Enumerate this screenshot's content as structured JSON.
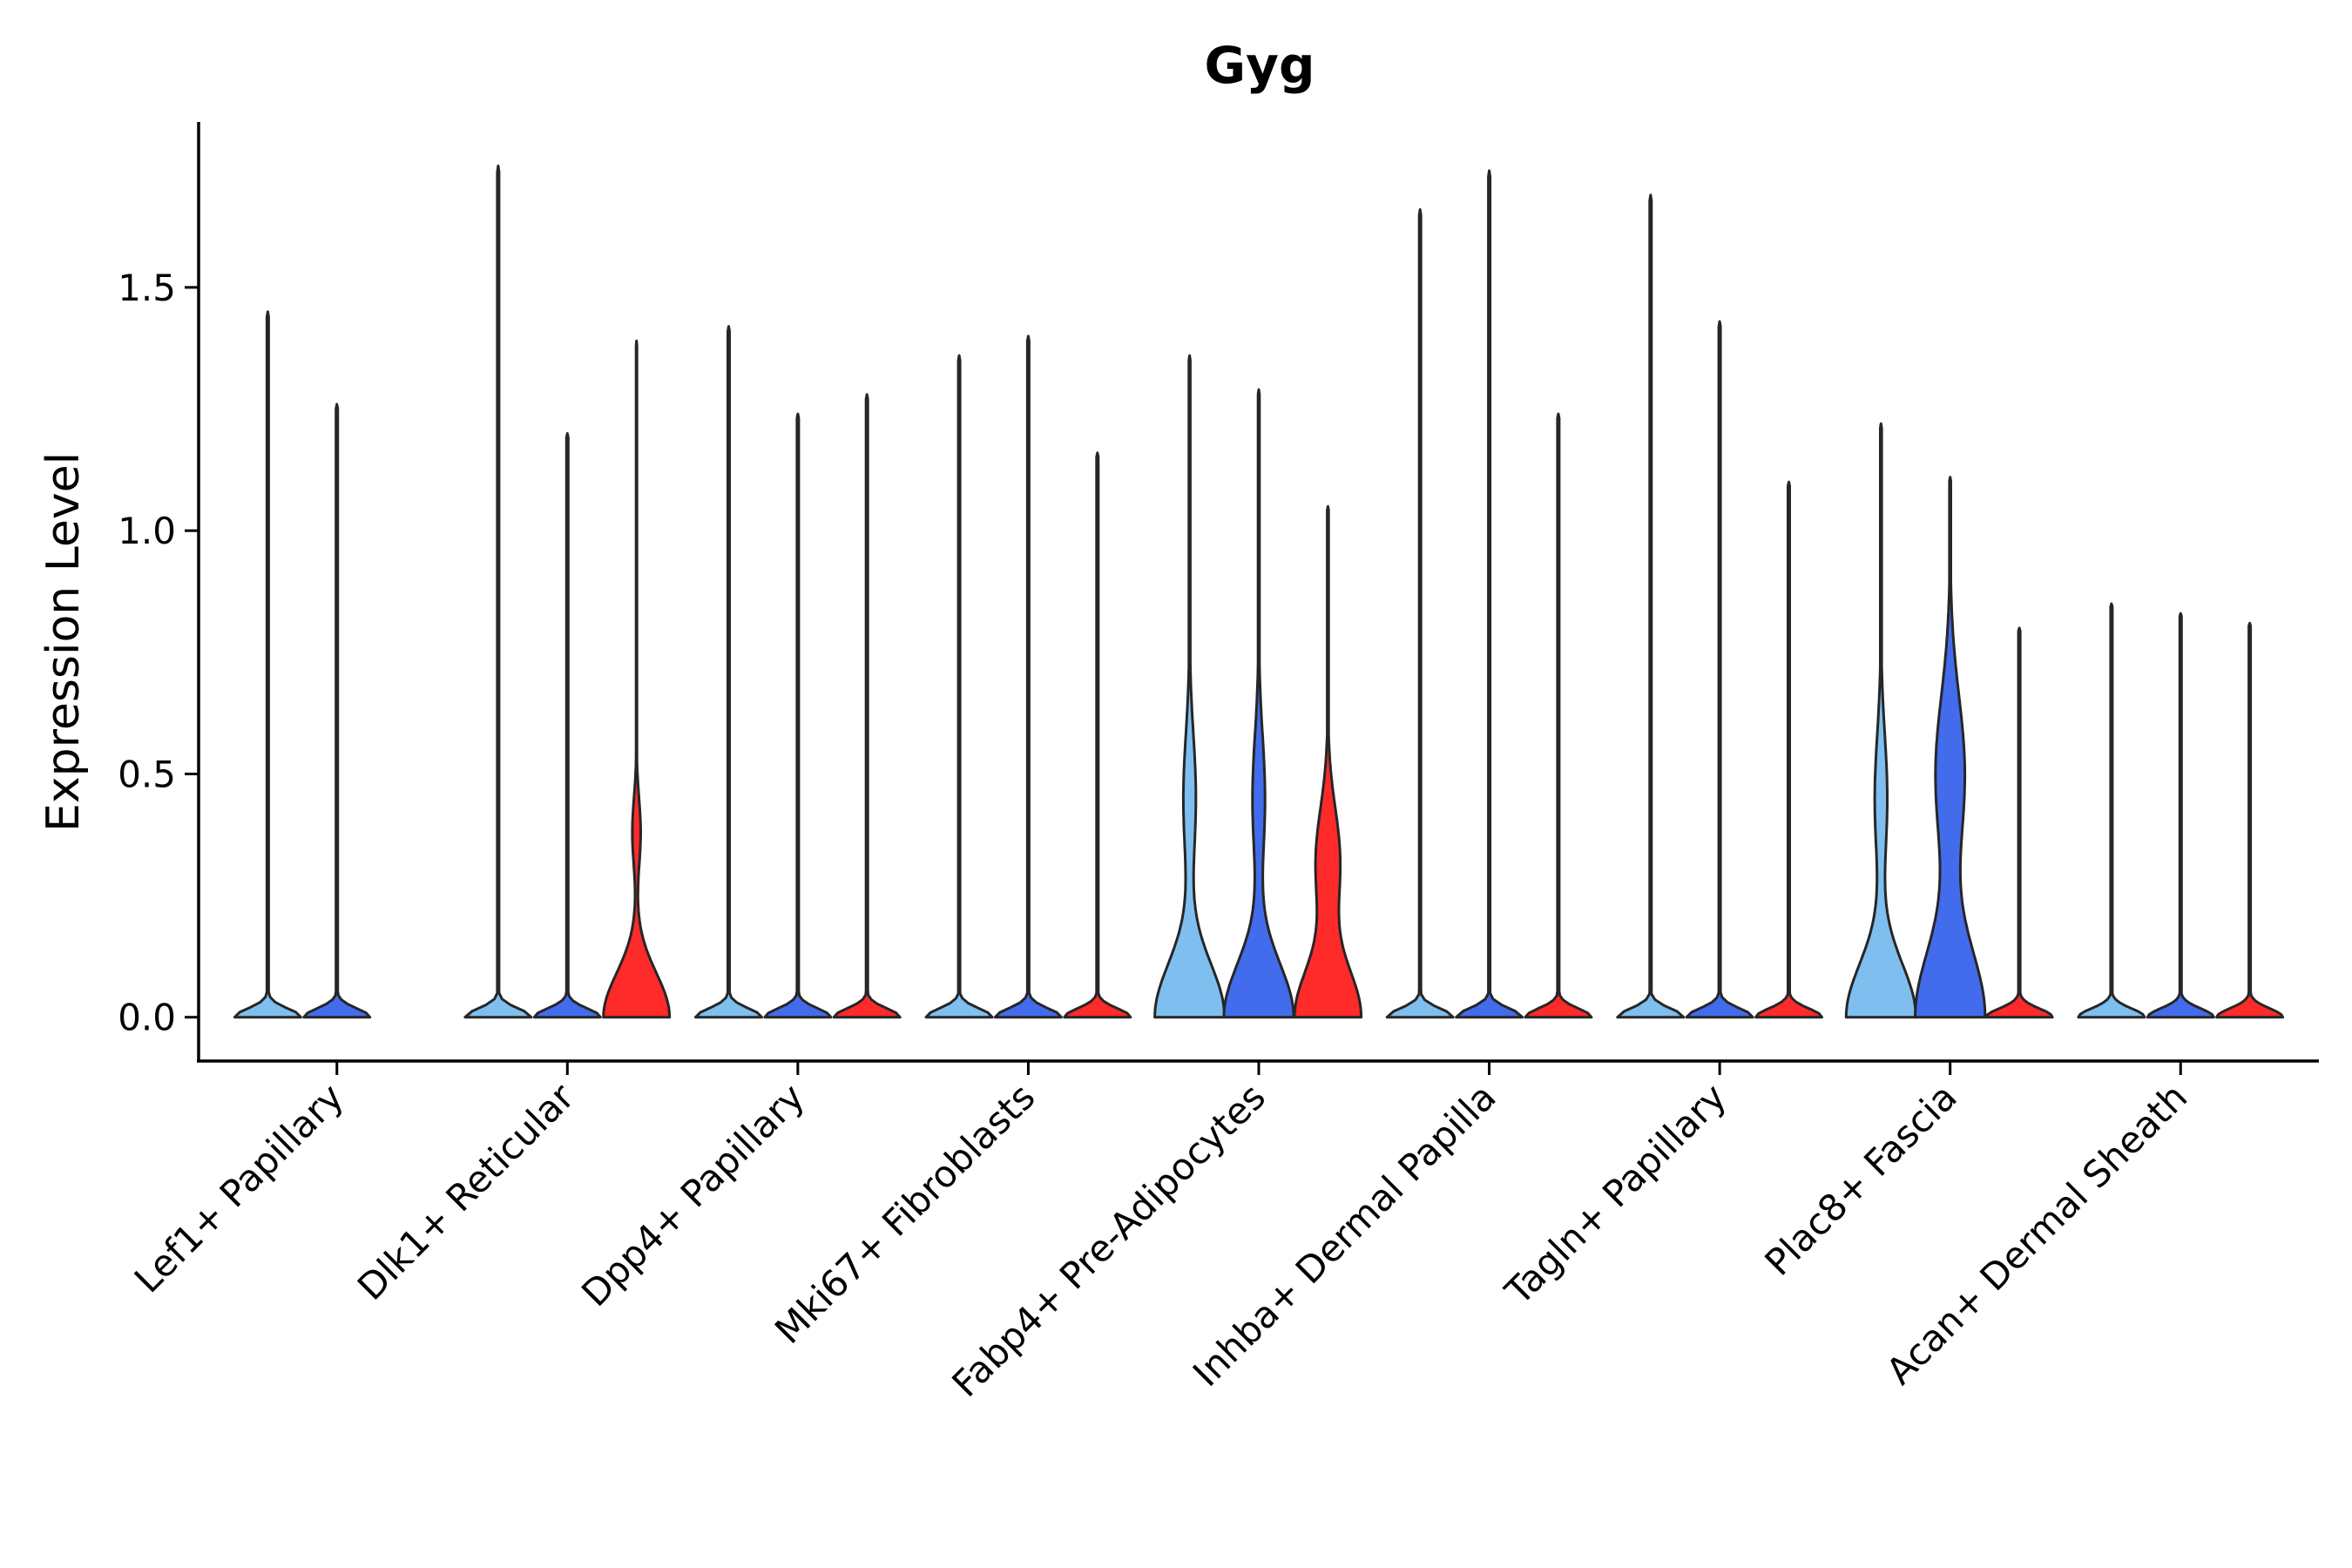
{
  "chart_data": {
    "type": "violin",
    "title": "Gyg",
    "xlabel": "",
    "ylabel": "Expression Level",
    "ylim": [
      -0.09,
      1.84
    ],
    "yticks": [
      "0.0",
      "0.5",
      "1.0",
      "1.5"
    ],
    "ytick_values": [
      0.0,
      0.5,
      1.0,
      1.5
    ],
    "categories": [
      "Lef1+ Papillary",
      "Dlk1+ Reticular",
      "Dpp4+ Papillary",
      "Mki67+ Fibroblasts",
      "Fabp4+ Pre-Adipocytes",
      "Inhba+ Dermal Papilla",
      "Tagln+ Papillary",
      "Plac8+ Fascia",
      "Acan+ Dermal Sheath"
    ],
    "series": [
      {
        "name": "group 1",
        "color": "#7FBFEF"
      },
      {
        "name": "group 2",
        "color": "#426CEB"
      },
      {
        "name": "group 3",
        "color": "#FF2A2A"
      }
    ],
    "violins": [
      {
        "category": "Lef1+ Papillary",
        "series": "group 1",
        "max": 1.45,
        "profile": "flat"
      },
      {
        "category": "Lef1+ Papillary",
        "series": "group 2",
        "max": 1.26,
        "profile": "flat"
      },
      {
        "category": "Lef1+ Papillary",
        "series": "group 3",
        "max": null,
        "profile": "none"
      },
      {
        "category": "Dlk1+ Reticular",
        "series": "group 1",
        "max": 1.75,
        "profile": "flat"
      },
      {
        "category": "Dlk1+ Reticular",
        "series": "group 2",
        "max": 1.2,
        "profile": "flat"
      },
      {
        "category": "Dlk1+ Reticular",
        "series": "group 3",
        "max": 1.39,
        "profile": "small-bump"
      },
      {
        "category": "Dpp4+ Papillary",
        "series": "group 1",
        "max": 1.42,
        "profile": "flat"
      },
      {
        "category": "Dpp4+ Papillary",
        "series": "group 2",
        "max": 1.24,
        "profile": "flat"
      },
      {
        "category": "Dpp4+ Papillary",
        "series": "group 3",
        "max": 1.28,
        "profile": "flat"
      },
      {
        "category": "Mki67+ Fibroblasts",
        "series": "group 1",
        "max": 1.36,
        "profile": "flat"
      },
      {
        "category": "Mki67+ Fibroblasts",
        "series": "group 2",
        "max": 1.4,
        "profile": "flat"
      },
      {
        "category": "Mki67+ Fibroblasts",
        "series": "group 3",
        "max": 1.16,
        "profile": "flat"
      },
      {
        "category": "Fabp4+ Pre-Adipocytes",
        "series": "group 1",
        "max": 1.36,
        "profile": "wide"
      },
      {
        "category": "Fabp4+ Pre-Adipocytes",
        "series": "group 2",
        "max": 1.29,
        "profile": "wide"
      },
      {
        "category": "Fabp4+ Pre-Adipocytes",
        "series": "group 3",
        "max": 1.05,
        "profile": "wide-upper"
      },
      {
        "category": "Inhba+ Dermal Papilla",
        "series": "group 1",
        "max": 1.66,
        "profile": "flat"
      },
      {
        "category": "Inhba+ Dermal Papilla",
        "series": "group 2",
        "max": 1.74,
        "profile": "flat"
      },
      {
        "category": "Inhba+ Dermal Papilla",
        "series": "group 3",
        "max": 1.24,
        "profile": "flat"
      },
      {
        "category": "Tagln+ Papillary",
        "series": "group 1",
        "max": 1.69,
        "profile": "flat"
      },
      {
        "category": "Tagln+ Papillary",
        "series": "group 2",
        "max": 1.43,
        "profile": "flat"
      },
      {
        "category": "Tagln+ Papillary",
        "series": "group 3",
        "max": 1.1,
        "profile": "flat"
      },
      {
        "category": "Plac8+ Fascia",
        "series": "group 1",
        "max": 1.22,
        "profile": "wide"
      },
      {
        "category": "Plac8+ Fascia",
        "series": "group 2",
        "max": 1.11,
        "profile": "wide-tall"
      },
      {
        "category": "Plac8+ Fascia",
        "series": "group 3",
        "max": 0.8,
        "profile": "flat"
      },
      {
        "category": "Acan+ Dermal Sheath",
        "series": "group 1",
        "max": 0.85,
        "profile": "flat"
      },
      {
        "category": "Acan+ Dermal Sheath",
        "series": "group 2",
        "max": 0.83,
        "profile": "flat"
      },
      {
        "category": "Acan+ Dermal Sheath",
        "series": "group 3",
        "max": 0.81,
        "profile": "flat"
      }
    ]
  }
}
